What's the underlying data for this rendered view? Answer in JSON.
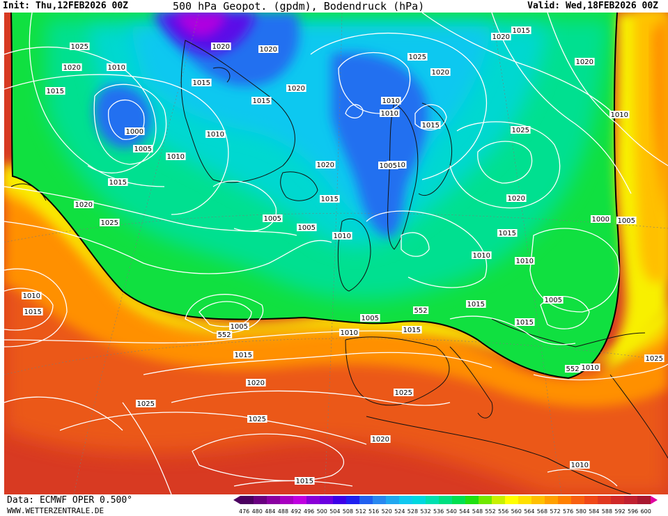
{
  "header": {
    "init": "Init: Thu,12FEB2026 00Z",
    "title": "500 hPa Geopot. (gpdm), Bodendruck (hPa)",
    "valid": "Valid: Wed,18FEB2026 00Z"
  },
  "footer": {
    "source": "Data: ECMWF OPER 0.500°",
    "website": "WWW.WETTERZENTRALE.DE"
  },
  "scale": {
    "values": [
      "476",
      "480",
      "484",
      "488",
      "492",
      "496",
      "500",
      "504",
      "508",
      "512",
      "516",
      "520",
      "524",
      "528",
      "532",
      "536",
      "540",
      "544",
      "548",
      "552",
      "556",
      "560",
      "564",
      "568",
      "572",
      "576",
      "580",
      "584",
      "588",
      "592",
      "596",
      "600"
    ],
    "colors": [
      "#4b0060",
      "#6a0080",
      "#8a00a0",
      "#a800c0",
      "#c000e0",
      "#8a00d8",
      "#6a00e0",
      "#3c00e8",
      "#1e20f0",
      "#2060f0",
      "#2888f0",
      "#20a8f0",
      "#10c8f0",
      "#00d8e0",
      "#00e0b0",
      "#00e080",
      "#00e050",
      "#20e010",
      "#70e800",
      "#c8f000",
      "#ffff00",
      "#ffe000",
      "#ffc000",
      "#ffa000",
      "#ff8000",
      "#f86010",
      "#f04818",
      "#e03820",
      "#d02828",
      "#c02030",
      "#a81830",
      "#e000a0"
    ]
  },
  "isobar_labels": [
    "1025",
    "1020",
    "1015",
    "1010",
    "1020",
    "1020",
    "1015",
    "1015",
    "1020",
    "1000",
    "1005",
    "1010",
    "1010",
    "1015",
    "1020",
    "1025",
    "1005",
    "1015",
    "1005",
    "1010",
    "1020",
    "1010",
    "1010",
    "1025",
    "1020",
    "1015",
    "1010",
    "1020",
    "1015",
    "1025",
    "1005",
    "1005",
    "1020",
    "1015",
    "1010",
    "1000",
    "1005",
    "1010",
    "1010",
    "1015",
    "1015",
    "1005",
    "1010",
    "1015",
    "1005",
    "1010",
    "1015",
    "552",
    "552",
    "552",
    "1020",
    "1025",
    "1025",
    "1025",
    "1020",
    "1015",
    "1010",
    "1015",
    "1025",
    "1010",
    "1020"
  ],
  "map_colors": {
    "purple": "#b000e0",
    "violet": "#5a10e8",
    "blue": "#2070f0",
    "cyan": "#10c8f0",
    "aqua": "#00d8d0",
    "teal": "#00e090",
    "green": "#10e040",
    "lime": "#60e820",
    "yellow": "#f8f000",
    "gold": "#ffc000",
    "orange": "#ff9000",
    "deep_orange": "#f06018",
    "red": "#d83a22"
  }
}
